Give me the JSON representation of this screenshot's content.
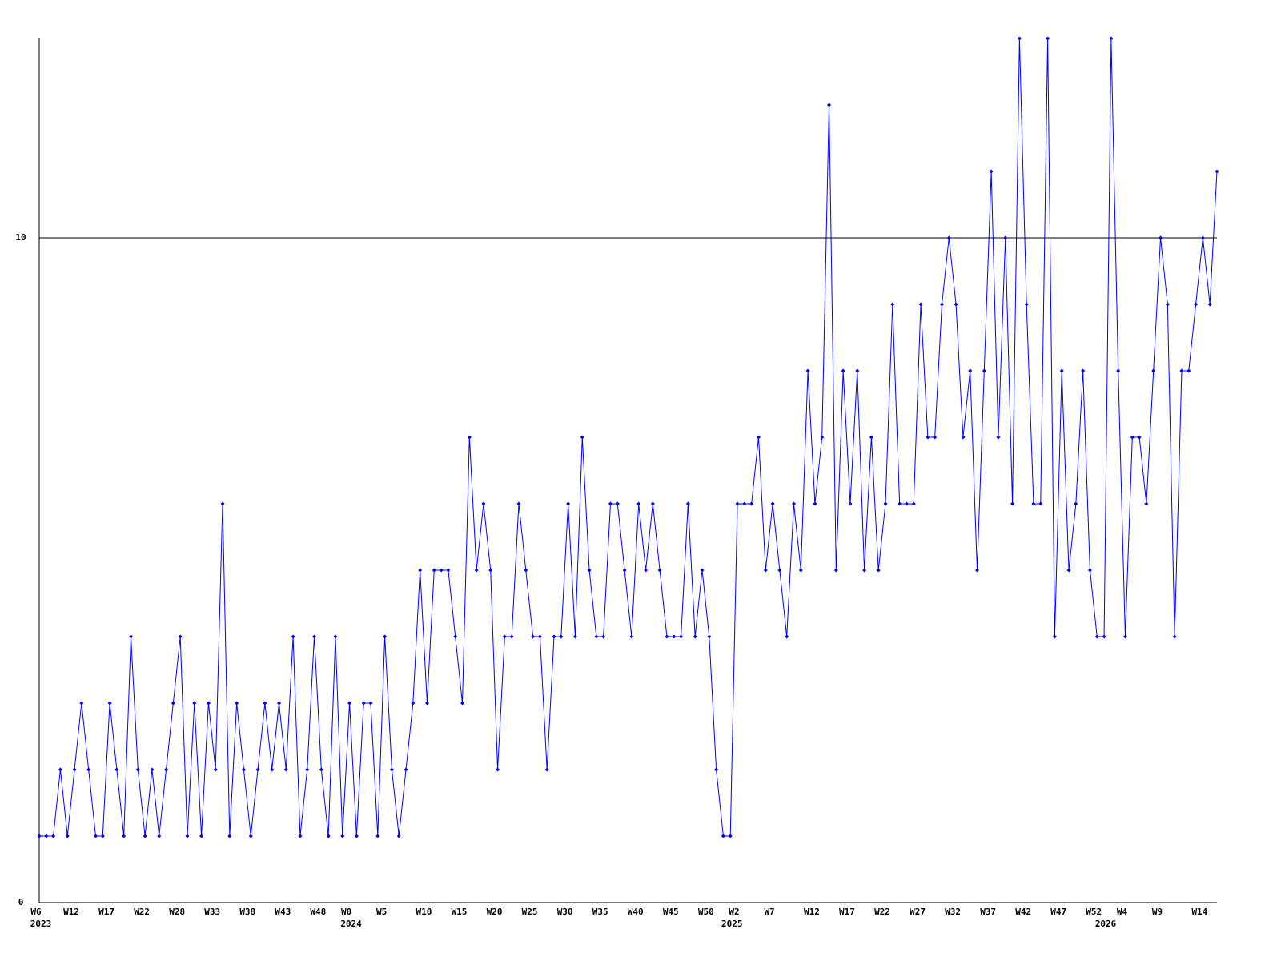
{
  "chart_data": {
    "type": "line",
    "color": "#0000ff",
    "ylim": [
      0,
      13
    ],
    "yticks": [
      0,
      10
    ],
    "grid": true,
    "categories": [
      "W6",
      null,
      null,
      null,
      null,
      "W12",
      null,
      null,
      null,
      null,
      "W17",
      null,
      null,
      null,
      null,
      "W22",
      null,
      null,
      null,
      null,
      "W28",
      null,
      null,
      null,
      null,
      "W33",
      null,
      null,
      null,
      null,
      "W38",
      null,
      null,
      null,
      null,
      "W43",
      null,
      null,
      null,
      null,
      "W48",
      null,
      null,
      null,
      "W0",
      null,
      null,
      null,
      null,
      "W5",
      null,
      null,
      null,
      null,
      null,
      "W10",
      null,
      null,
      null,
      null,
      "W15",
      null,
      null,
      null,
      null,
      "W20",
      null,
      null,
      null,
      null,
      "W25",
      null,
      null,
      null,
      null,
      "W30",
      null,
      null,
      null,
      null,
      "W35",
      null,
      null,
      null,
      null,
      "W40",
      null,
      null,
      null,
      null,
      "W45",
      null,
      null,
      null,
      null,
      "W50",
      null,
      null,
      null,
      "W2",
      null,
      null,
      null,
      null,
      "W7",
      null,
      null,
      null,
      null,
      null,
      "W12",
      null,
      null,
      null,
      null,
      "W17",
      null,
      null,
      null,
      null,
      "W22",
      null,
      null,
      null,
      null,
      "W27",
      null,
      null,
      null,
      null,
      "W32",
      null,
      null,
      null,
      null,
      "W37",
      null,
      null,
      null,
      null,
      "W42",
      null,
      null,
      null,
      null,
      "W47",
      null,
      null,
      null,
      null,
      "W52",
      null,
      null,
      null,
      "W4",
      null,
      null,
      null,
      null,
      "W9",
      null,
      null,
      null,
      null,
      null,
      "W14",
      null,
      null
    ],
    "category_years": [
      "2023",
      null,
      null,
      null,
      null,
      null,
      null,
      null,
      null,
      null,
      null,
      null,
      null,
      null,
      null,
      null,
      null,
      null,
      null,
      null,
      null,
      null,
      null,
      null,
      null,
      null,
      null,
      null,
      null,
      null,
      null,
      null,
      null,
      null,
      null,
      null,
      null,
      null,
      null,
      null,
      null,
      null,
      null,
      null,
      "2024",
      null,
      null,
      null,
      null,
      null,
      null,
      null,
      null,
      null,
      null,
      null,
      null,
      null,
      null,
      null,
      null,
      null,
      null,
      null,
      null,
      null,
      null,
      null,
      null,
      null,
      null,
      null,
      null,
      null,
      null,
      null,
      null,
      null,
      null,
      null,
      null,
      null,
      null,
      null,
      null,
      null,
      null,
      null,
      null,
      null,
      null,
      null,
      null,
      null,
      null,
      null,
      null,
      null,
      "2025",
      null,
      null,
      null,
      null,
      null,
      null,
      null,
      null,
      null,
      null,
      null,
      null,
      null,
      null,
      null,
      null,
      null,
      null,
      null,
      null,
      null,
      null,
      null,
      null,
      null,
      null,
      null,
      null,
      null,
      null,
      null,
      null,
      null,
      null,
      null,
      null,
      null,
      null,
      null,
      null,
      null,
      null,
      null,
      null,
      null,
      null,
      null,
      null,
      null,
      null,
      null,
      null,
      "2026",
      null,
      null,
      null,
      null,
      null,
      null,
      null,
      null,
      null,
      null,
      null,
      null,
      null,
      null,
      null,
      null
    ],
    "values": [
      1,
      1,
      1,
      2,
      1,
      2,
      3,
      2,
      1,
      1,
      3,
      2,
      1,
      4,
      2,
      1,
      2,
      1,
      2,
      3,
      4,
      1,
      3,
      1,
      3,
      2,
      6,
      1,
      3,
      2,
      1,
      2,
      3,
      2,
      3,
      2,
      4,
      1,
      2,
      4,
      2,
      1,
      4,
      1,
      3,
      1,
      3,
      3,
      1,
      4,
      2,
      1,
      2,
      3,
      5,
      3,
      5,
      5,
      5,
      4,
      3,
      7,
      5,
      6,
      5,
      2,
      4,
      4,
      6,
      5,
      4,
      4,
      2,
      4,
      4,
      6,
      4,
      7,
      5,
      4,
      4,
      6,
      6,
      5,
      4,
      6,
      5,
      6,
      5,
      4,
      4,
      4,
      6,
      4,
      5,
      4,
      2,
      1,
      1,
      6,
      6,
      6,
      7,
      5,
      6,
      5,
      4,
      6,
      5,
      8,
      6,
      7,
      12,
      5,
      8,
      6,
      8,
      5,
      7,
      5,
      6,
      9,
      6,
      6,
      6,
      9,
      7,
      7,
      9,
      10,
      9,
      7,
      8,
      5,
      8,
      11,
      7,
      10,
      6,
      13,
      9,
      6,
      6,
      13,
      4,
      8,
      5,
      6,
      8,
      5,
      4,
      4,
      13,
      8,
      4,
      7,
      7,
      6,
      8,
      10,
      9,
      4,
      8,
      8,
      9,
      10,
      9,
      11
    ]
  }
}
